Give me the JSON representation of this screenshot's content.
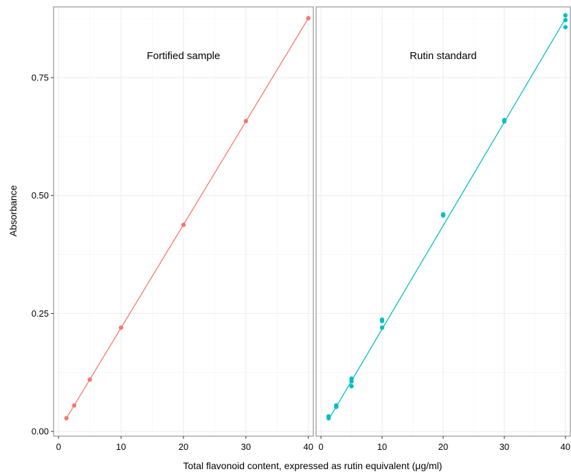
{
  "chart_data": {
    "type": "scatter",
    "ylabel": "Absorbance",
    "xlabel": "Total flavonoid content, expressed as rutin equivalent (μg/ml)",
    "ylim": [
      -0.01,
      0.9
    ],
    "xlim": [
      -0.8,
      40.8
    ],
    "x_ticks": [
      0,
      10,
      20,
      30,
      40
    ],
    "x_tick_labels": [
      "0",
      "10",
      "20",
      "30",
      "40"
    ],
    "y_ticks": [
      0.0,
      0.25,
      0.5,
      0.75
    ],
    "y_tick_labels": [
      "0.00",
      "0.25",
      "0.50",
      "0.75"
    ],
    "grid": true,
    "panels": [
      {
        "label": "Fortified sample",
        "color": "#F8766D",
        "points": [
          [
            1.25,
            0.028
          ],
          [
            2.5,
            0.055
          ],
          [
            5,
            0.11
          ],
          [
            10,
            0.22
          ],
          [
            20,
            0.438
          ],
          [
            30,
            0.658
          ],
          [
            40,
            0.876
          ]
        ],
        "fit_line": [
          [
            1.25,
            0.028
          ],
          [
            40,
            0.876
          ]
        ]
      },
      {
        "label": "Rutin standard",
        "color": "#00BFC4",
        "points": [
          [
            1.25,
            0.028
          ],
          [
            1.25,
            0.032
          ],
          [
            2.5,
            0.052
          ],
          [
            2.5,
            0.055
          ],
          [
            5,
            0.096
          ],
          [
            5,
            0.106
          ],
          [
            5,
            0.112
          ],
          [
            10,
            0.22
          ],
          [
            10,
            0.234
          ],
          [
            10,
            0.237
          ],
          [
            20,
            0.458
          ],
          [
            20,
            0.46
          ],
          [
            30,
            0.657
          ],
          [
            30,
            0.66
          ],
          [
            40,
            0.857
          ],
          [
            40,
            0.872
          ],
          [
            40,
            0.882
          ]
        ],
        "fit_line": [
          [
            1.25,
            0.025
          ],
          [
            40,
            0.875
          ]
        ]
      }
    ]
  }
}
